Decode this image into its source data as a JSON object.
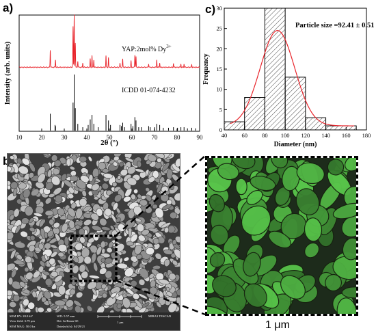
{
  "panels": {
    "a": "a)",
    "b": "b)",
    "c": "c)"
  },
  "chart_data": [
    {
      "type": "line",
      "panel": "a",
      "xlabel": "2θ (°)",
      "ylabel": "Intensity (arb. units)",
      "xlim": [
        10,
        90
      ],
      "xticks": [
        10,
        20,
        30,
        40,
        50,
        60,
        70,
        80,
        90
      ],
      "series": [
        {
          "name": "YAP:2mol% Dy",
          "name_superscript": "3+",
          "color": "#e8232a",
          "baseline": 0.06,
          "peaks": [
            {
              "x": 23.8,
              "h": 0.33
            },
            {
              "x": 26.1,
              "h": 0.14
            },
            {
              "x": 33.9,
              "h": 0.78
            },
            {
              "x": 34.4,
              "h": 1.0
            },
            {
              "x": 34.9,
              "h": 0.46
            },
            {
              "x": 36.0,
              "h": 0.12
            },
            {
              "x": 38.2,
              "h": 0.08
            },
            {
              "x": 41.5,
              "h": 0.16
            },
            {
              "x": 42.3,
              "h": 0.22
            },
            {
              "x": 43.1,
              "h": 0.14
            },
            {
              "x": 48.5,
              "h": 0.22
            },
            {
              "x": 49.6,
              "h": 0.18
            },
            {
              "x": 54.7,
              "h": 0.08
            },
            {
              "x": 55.9,
              "h": 0.16
            },
            {
              "x": 59.6,
              "h": 0.12
            },
            {
              "x": 61.3,
              "h": 0.24
            },
            {
              "x": 61.8,
              "h": 0.2
            },
            {
              "x": 67.4,
              "h": 0.07
            },
            {
              "x": 71.0,
              "h": 0.14
            },
            {
              "x": 72.3,
              "h": 0.08
            },
            {
              "x": 78.4,
              "h": 0.07
            },
            {
              "x": 81.7,
              "h": 0.06
            },
            {
              "x": 83.1,
              "h": 0.06
            },
            {
              "x": 86.5,
              "h": 0.05
            }
          ]
        },
        {
          "name": "ICDD 01-074-4232",
          "color": "#000000",
          "type": "sticks",
          "sticks": [
            {
              "x": 23.8,
              "h": 0.3
            },
            {
              "x": 25.9,
              "h": 0.1
            },
            {
              "x": 26.1,
              "h": 0.08
            },
            {
              "x": 33.9,
              "h": 0.5
            },
            {
              "x": 34.4,
              "h": 1.0
            },
            {
              "x": 34.9,
              "h": 0.4
            },
            {
              "x": 36.0,
              "h": 0.12
            },
            {
              "x": 38.2,
              "h": 0.06
            },
            {
              "x": 40.6,
              "h": 0.1
            },
            {
              "x": 41.5,
              "h": 0.2
            },
            {
              "x": 42.3,
              "h": 0.28
            },
            {
              "x": 43.1,
              "h": 0.12
            },
            {
              "x": 45.1,
              "h": 0.06
            },
            {
              "x": 48.5,
              "h": 0.28
            },
            {
              "x": 49.6,
              "h": 0.18
            },
            {
              "x": 50.5,
              "h": 0.1
            },
            {
              "x": 54.7,
              "h": 0.1
            },
            {
              "x": 55.3,
              "h": 0.08
            },
            {
              "x": 55.9,
              "h": 0.14
            },
            {
              "x": 56.7,
              "h": 0.06
            },
            {
              "x": 59.6,
              "h": 0.12
            },
            {
              "x": 60.4,
              "h": 0.08
            },
            {
              "x": 61.3,
              "h": 0.24
            },
            {
              "x": 61.8,
              "h": 0.18
            },
            {
              "x": 63.0,
              "h": 0.06
            },
            {
              "x": 64.2,
              "h": 0.06
            },
            {
              "x": 67.4,
              "h": 0.08
            },
            {
              "x": 68.1,
              "h": 0.06
            },
            {
              "x": 70.1,
              "h": 0.06
            },
            {
              "x": 71.0,
              "h": 0.12
            },
            {
              "x": 72.3,
              "h": 0.1
            },
            {
              "x": 73.9,
              "h": 0.05
            },
            {
              "x": 76.2,
              "h": 0.05
            },
            {
              "x": 78.4,
              "h": 0.06
            },
            {
              "x": 80.2,
              "h": 0.05
            },
            {
              "x": 81.7,
              "h": 0.06
            },
            {
              "x": 83.1,
              "h": 0.06
            },
            {
              "x": 84.6,
              "h": 0.04
            },
            {
              "x": 86.5,
              "h": 0.05
            },
            {
              "x": 88.2,
              "h": 0.04
            }
          ]
        }
      ]
    },
    {
      "type": "bar",
      "panel": "c",
      "xlabel": "Diameter (nm)",
      "ylabel": "Frequency",
      "annotation": "Particle size =92.41 ± 0.51",
      "xlim": [
        40,
        180
      ],
      "ylim": [
        0,
        30
      ],
      "xticks": [
        40,
        60,
        80,
        100,
        120,
        140,
        160,
        180
      ],
      "yticks": [
        0,
        5,
        10,
        15,
        20,
        25,
        30
      ],
      "bins": [
        {
          "x0": 40,
          "x1": 60,
          "value": 2
        },
        {
          "x0": 60,
          "x1": 80,
          "value": 8
        },
        {
          "x0": 80,
          "x1": 100,
          "value": 30
        },
        {
          "x0": 100,
          "x1": 120,
          "value": 13
        },
        {
          "x0": 120,
          "x1": 140,
          "value": 3
        },
        {
          "x0": 140,
          "x1": 170,
          "value": 1
        }
      ],
      "fit": {
        "type": "gaussian",
        "mean": 92.41,
        "amplitude": 23.5,
        "sigma": 17,
        "offset": 1,
        "color": "#e8232a",
        "x_range": [
          46,
          168
        ]
      }
    }
  ],
  "sem": {
    "hv": "SEM HV: 20.0 kV",
    "view_field": "View field: 3.79 μm",
    "mag": "SEM MAG: 50.0 kx",
    "wd": "WD: 5.57 mm",
    "det": "Det: In-Beam SE",
    "date": "Date(m/d/y): 04/29/21",
    "scale": "1 μm",
    "instrument": "MIRA3 TESCAN"
  },
  "zoom_scale_label": "1 μm"
}
